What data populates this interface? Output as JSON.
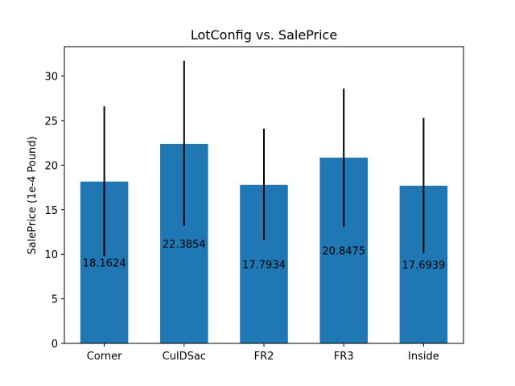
{
  "chart_data": {
    "type": "bar",
    "title": "LotConfig vs. SalePrice",
    "xlabel": "",
    "ylabel": "SalePrice (1e-4 Pound)",
    "categories": [
      "Corner",
      "CulDSac",
      "FR2",
      "FR3",
      "Inside"
    ],
    "values": [
      18.1624,
      22.3854,
      17.7934,
      20.8475,
      17.6939
    ],
    "error_low": [
      9.8,
      13.2,
      11.6,
      13.1,
      10.1
    ],
    "error_high": [
      26.6,
      31.7,
      24.1,
      28.6,
      25.3
    ],
    "data_labels": [
      "18.1624",
      "22.3854",
      "17.7934",
      "20.8475",
      "17.6939"
    ],
    "ylim": [
      0,
      33.3
    ],
    "yticks": [
      0,
      5,
      10,
      15,
      20,
      25,
      30
    ],
    "ytick_labels": [
      "0",
      "5",
      "10",
      "15",
      "20",
      "25",
      "30"
    ],
    "grid": false,
    "legend": "none",
    "bar_color": "#1f77b4",
    "error_color": "#000000"
  }
}
